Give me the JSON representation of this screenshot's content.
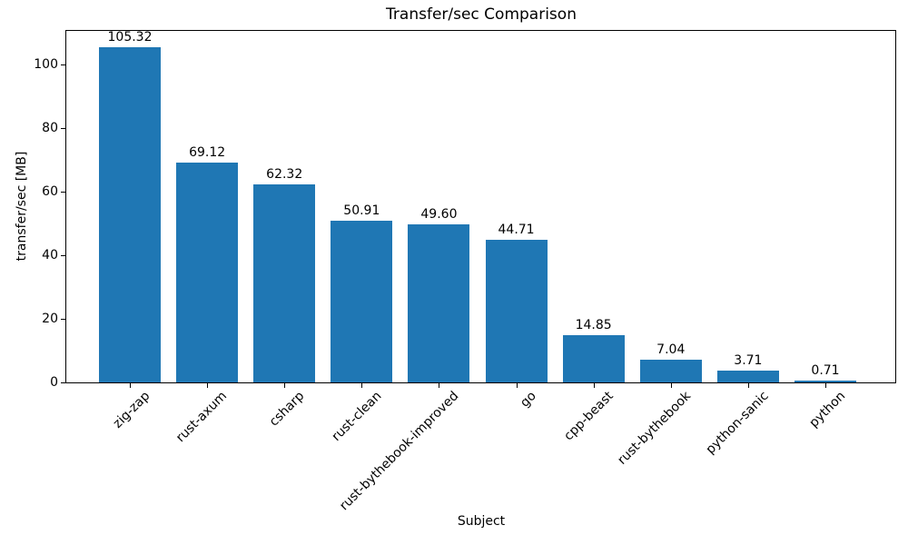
{
  "chart_data": {
    "type": "bar",
    "title": "Transfer/sec Comparison",
    "xlabel": "Subject",
    "ylabel": "transfer/sec [MB]",
    "categories": [
      "zig-zap",
      "rust-axum",
      "csharp",
      "rust-clean",
      "rust-bythebook-improved",
      "go",
      "cpp-beast",
      "rust-bythebook",
      "python-sanic",
      "python"
    ],
    "values": [
      105.32,
      69.12,
      62.32,
      50.91,
      49.6,
      44.71,
      14.85,
      7.04,
      3.71,
      0.71
    ],
    "value_labels": [
      "105.32",
      "69.12",
      "62.32",
      "50.91",
      "49.60",
      "44.71",
      "14.85",
      "7.04",
      "3.71",
      "0.71"
    ],
    "yticks": [
      0,
      20,
      40,
      60,
      80,
      100
    ],
    "ylim": [
      0,
      110.7
    ],
    "bar_color": "#1f77b4",
    "grid": false,
    "legend_position": "none"
  }
}
